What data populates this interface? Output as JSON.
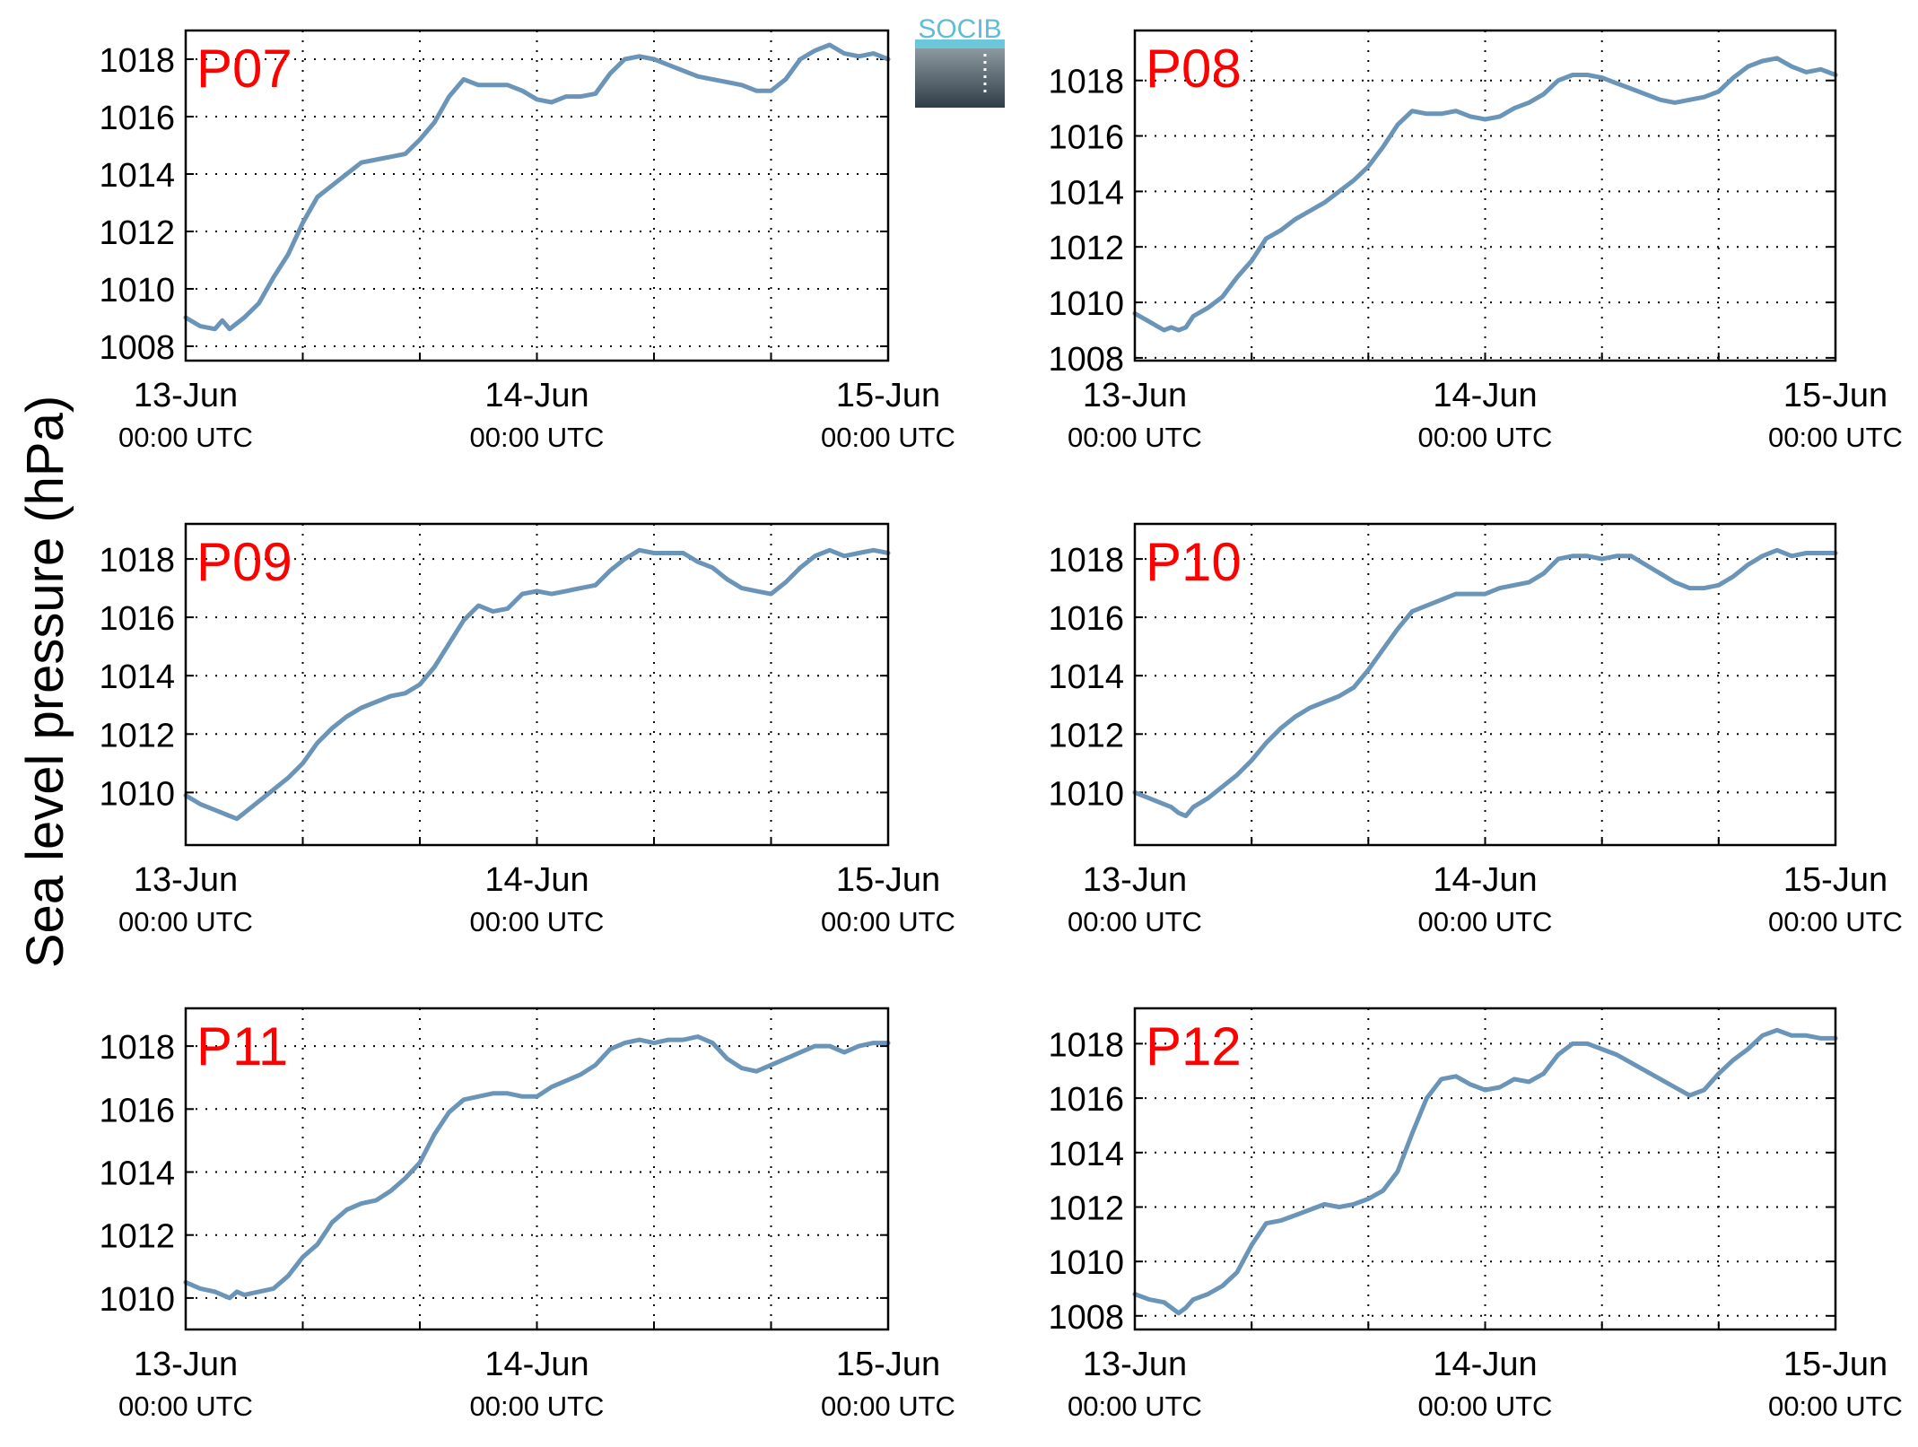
{
  "figure": {
    "ylabel": "Sea level pressure (hPa)",
    "logo_text": "SOCIB",
    "line_color": "#6a95b8",
    "label_color": "#ff0000"
  },
  "chart_data": [
    {
      "type": "line",
      "title": "P07",
      "x_ticks": [
        {
          "date": "13-Jun",
          "time": "00:00 UTC",
          "x": 0
        },
        {
          "date": "14-Jun",
          "time": "00:00 UTC",
          "x": 24
        },
        {
          "date": "15-Jun",
          "time": "00:00 UTC",
          "x": 48
        }
      ],
      "xlim": [
        0,
        48
      ],
      "ylim": [
        1007.5,
        1019
      ],
      "yticks": [
        1008,
        1010,
        1012,
        1014,
        1016,
        1018
      ],
      "grid": true,
      "x_unit": "hours since 13-Jun 00:00 UTC",
      "series": [
        {
          "x": [
            0,
            1,
            2,
            2.5,
            3,
            3.5,
            4,
            5,
            6,
            7,
            8,
            9,
            10,
            11,
            12,
            13,
            14,
            15,
            16,
            17,
            18,
            19,
            20,
            21,
            22,
            23,
            24,
            25,
            26,
            27,
            28,
            29,
            30,
            31,
            32,
            33,
            34,
            35,
            36,
            37,
            38,
            39,
            40,
            41,
            42,
            43,
            44,
            45,
            46,
            47,
            48
          ],
          "y": [
            1009,
            1008.7,
            1008.6,
            1008.9,
            1008.6,
            1008.8,
            1009,
            1009.5,
            1010.4,
            1011.2,
            1012.3,
            1013.2,
            1013.6,
            1014,
            1014.4,
            1014.5,
            1014.6,
            1014.7,
            1015.2,
            1015.8,
            1016.7,
            1017.3,
            1017.1,
            1017.1,
            1017.1,
            1016.9,
            1016.6,
            1016.5,
            1016.7,
            1016.7,
            1016.8,
            1017.5,
            1018,
            1018.1,
            1018,
            1017.8,
            1017.6,
            1017.4,
            1017.3,
            1017.2,
            1017.1,
            1016.9,
            1016.9,
            1017.3,
            1018,
            1018.3,
            1018.5,
            1018.2,
            1018.1,
            1018.2,
            1018
          ]
        }
      ]
    },
    {
      "type": "line",
      "title": "P08",
      "x_ticks": [
        {
          "date": "13-Jun",
          "time": "00:00 UTC",
          "x": 0
        },
        {
          "date": "14-Jun",
          "time": "00:00 UTC",
          "x": 24
        },
        {
          "date": "15-Jun",
          "time": "00:00 UTC",
          "x": 48
        }
      ],
      "xlim": [
        0,
        48
      ],
      "ylim": [
        1007.9,
        1019.8
      ],
      "yticks": [
        1008,
        1010,
        1012,
        1014,
        1016,
        1018
      ],
      "grid": true,
      "x_unit": "hours since 13-Jun 00:00 UTC",
      "series": [
        {
          "x": [
            0,
            1,
            2,
            2.5,
            3,
            3.5,
            4,
            5,
            6,
            7,
            8,
            9,
            10,
            11,
            12,
            13,
            14,
            15,
            16,
            17,
            18,
            19,
            20,
            21,
            22,
            23,
            24,
            25,
            26,
            27,
            28,
            29,
            30,
            31,
            32,
            33,
            34,
            35,
            36,
            37,
            38,
            39,
            40,
            41,
            42,
            43,
            44,
            45,
            46,
            47,
            48
          ],
          "y": [
            1009.6,
            1009.3,
            1009,
            1009.1,
            1009,
            1009.1,
            1009.5,
            1009.8,
            1010.2,
            1010.9,
            1011.5,
            1012.3,
            1012.6,
            1013,
            1013.3,
            1013.6,
            1014,
            1014.4,
            1014.9,
            1015.6,
            1016.4,
            1016.9,
            1016.8,
            1016.8,
            1016.9,
            1016.7,
            1016.6,
            1016.7,
            1017,
            1017.2,
            1017.5,
            1018,
            1018.2,
            1018.2,
            1018.1,
            1017.9,
            1017.7,
            1017.5,
            1017.3,
            1017.2,
            1017.3,
            1017.4,
            1017.6,
            1018.1,
            1018.5,
            1018.7,
            1018.8,
            1018.5,
            1018.3,
            1018.4,
            1018.2
          ]
        }
      ]
    },
    {
      "type": "line",
      "title": "P09",
      "x_ticks": [
        {
          "date": "13-Jun",
          "time": "00:00 UTC",
          "x": 0
        },
        {
          "date": "14-Jun",
          "time": "00:00 UTC",
          "x": 24
        },
        {
          "date": "15-Jun",
          "time": "00:00 UTC",
          "x": 48
        }
      ],
      "xlim": [
        0,
        48
      ],
      "ylim": [
        1008.2,
        1019.2
      ],
      "yticks": [
        1010,
        1012,
        1014,
        1016,
        1018
      ],
      "grid": true,
      "x_unit": "hours since 13-Jun 00:00 UTC",
      "series": [
        {
          "x": [
            0,
            1,
            2,
            2.5,
            3,
            3.5,
            4,
            5,
            6,
            7,
            8,
            9,
            10,
            11,
            12,
            13,
            14,
            15,
            16,
            17,
            18,
            19,
            20,
            21,
            22,
            23,
            24,
            25,
            26,
            27,
            28,
            29,
            30,
            31,
            32,
            33,
            34,
            35,
            36,
            37,
            38,
            39,
            40,
            41,
            42,
            43,
            44,
            45,
            46,
            47,
            48
          ],
          "y": [
            1009.9,
            1009.6,
            1009.4,
            1009.3,
            1009.2,
            1009.1,
            1009.3,
            1009.7,
            1010.1,
            1010.5,
            1011,
            1011.7,
            1012.2,
            1012.6,
            1012.9,
            1013.1,
            1013.3,
            1013.4,
            1013.7,
            1014.3,
            1015.1,
            1015.9,
            1016.4,
            1016.2,
            1016.3,
            1016.8,
            1016.9,
            1016.8,
            1016.9,
            1017,
            1017.1,
            1017.6,
            1018,
            1018.3,
            1018.2,
            1018.2,
            1018.2,
            1017.9,
            1017.7,
            1017.3,
            1017,
            1016.9,
            1016.8,
            1017.2,
            1017.7,
            1018.1,
            1018.3,
            1018.1,
            1018.2,
            1018.3,
            1018.2
          ]
        }
      ]
    },
    {
      "type": "line",
      "title": "P10",
      "x_ticks": [
        {
          "date": "13-Jun",
          "time": "00:00 UTC",
          "x": 0
        },
        {
          "date": "14-Jun",
          "time": "00:00 UTC",
          "x": 24
        },
        {
          "date": "15-Jun",
          "time": "00:00 UTC",
          "x": 48
        }
      ],
      "xlim": [
        0,
        48
      ],
      "ylim": [
        1008.2,
        1019.2
      ],
      "yticks": [
        1010,
        1012,
        1014,
        1016,
        1018
      ],
      "grid": true,
      "x_unit": "hours since 13-Jun 00:00 UTC",
      "series": [
        {
          "x": [
            0,
            1,
            2,
            2.5,
            3,
            3.5,
            4,
            5,
            6,
            7,
            8,
            9,
            10,
            11,
            12,
            13,
            14,
            15,
            16,
            17,
            18,
            19,
            20,
            21,
            22,
            23,
            24,
            25,
            26,
            27,
            28,
            29,
            30,
            31,
            32,
            33,
            34,
            35,
            36,
            37,
            38,
            39,
            40,
            41,
            42,
            43,
            44,
            45,
            46,
            47,
            48
          ],
          "y": [
            1010,
            1009.8,
            1009.6,
            1009.5,
            1009.3,
            1009.2,
            1009.5,
            1009.8,
            1010.2,
            1010.6,
            1011.1,
            1011.7,
            1012.2,
            1012.6,
            1012.9,
            1013.1,
            1013.3,
            1013.6,
            1014.2,
            1014.9,
            1015.6,
            1016.2,
            1016.4,
            1016.6,
            1016.8,
            1016.8,
            1016.8,
            1017,
            1017.1,
            1017.2,
            1017.5,
            1018,
            1018.1,
            1018.1,
            1018,
            1018.1,
            1018.1,
            1017.8,
            1017.5,
            1017.2,
            1017,
            1017,
            1017.1,
            1017.4,
            1017.8,
            1018.1,
            1018.3,
            1018.1,
            1018.2,
            1018.2,
            1018.2
          ]
        }
      ]
    },
    {
      "type": "line",
      "title": "P11",
      "x_ticks": [
        {
          "date": "13-Jun",
          "time": "00:00 UTC",
          "x": 0
        },
        {
          "date": "14-Jun",
          "time": "00:00 UTC",
          "x": 24
        },
        {
          "date": "15-Jun",
          "time": "00:00 UTC",
          "x": 48
        }
      ],
      "xlim": [
        0,
        48
      ],
      "ylim": [
        1009,
        1019.2
      ],
      "yticks": [
        1010,
        1012,
        1014,
        1016,
        1018
      ],
      "grid": true,
      "x_unit": "hours since 13-Jun 00:00 UTC",
      "series": [
        {
          "x": [
            0,
            1,
            2,
            2.5,
            3,
            3.5,
            4,
            5,
            6,
            7,
            8,
            9,
            10,
            11,
            12,
            13,
            14,
            15,
            16,
            17,
            18,
            19,
            20,
            21,
            22,
            23,
            24,
            25,
            26,
            27,
            28,
            29,
            30,
            31,
            32,
            33,
            34,
            35,
            36,
            37,
            38,
            39,
            40,
            41,
            42,
            43,
            44,
            45,
            46,
            47,
            48
          ],
          "y": [
            1010.5,
            1010.3,
            1010.2,
            1010.1,
            1010,
            1010.2,
            1010.1,
            1010.2,
            1010.3,
            1010.7,
            1011.3,
            1011.7,
            1012.4,
            1012.8,
            1013,
            1013.1,
            1013.4,
            1013.8,
            1014.3,
            1015.2,
            1015.9,
            1016.3,
            1016.4,
            1016.5,
            1016.5,
            1016.4,
            1016.4,
            1016.7,
            1016.9,
            1017.1,
            1017.4,
            1017.9,
            1018.1,
            1018.2,
            1018.1,
            1018.2,
            1018.2,
            1018.3,
            1018.1,
            1017.6,
            1017.3,
            1017.2,
            1017.4,
            1017.6,
            1017.8,
            1018,
            1018,
            1017.8,
            1018,
            1018.1,
            1018.1
          ]
        }
      ]
    },
    {
      "type": "line",
      "title": "P12",
      "x_ticks": [
        {
          "date": "13-Jun",
          "time": "00:00 UTC",
          "x": 0
        },
        {
          "date": "14-Jun",
          "time": "00:00 UTC",
          "x": 24
        },
        {
          "date": "15-Jun",
          "time": "00:00 UTC",
          "x": 48
        }
      ],
      "xlim": [
        0,
        48
      ],
      "ylim": [
        1007.5,
        1019.3
      ],
      "yticks": [
        1008,
        1010,
        1012,
        1014,
        1016,
        1018
      ],
      "grid": true,
      "x_unit": "hours since 13-Jun 00:00 UTC",
      "series": [
        {
          "x": [
            0,
            1,
            2,
            2.5,
            3,
            3.5,
            4,
            5,
            6,
            7,
            8,
            9,
            10,
            11,
            12,
            13,
            14,
            15,
            16,
            17,
            18,
            19,
            20,
            21,
            22,
            23,
            24,
            25,
            26,
            27,
            28,
            29,
            30,
            31,
            32,
            33,
            34,
            35,
            36,
            37,
            38,
            39,
            40,
            41,
            42,
            43,
            44,
            45,
            46,
            47,
            48
          ],
          "y": [
            1008.8,
            1008.6,
            1008.5,
            1008.3,
            1008.1,
            1008.3,
            1008.6,
            1008.8,
            1009.1,
            1009.6,
            1010.6,
            1011.4,
            1011.5,
            1011.7,
            1011.9,
            1012.1,
            1012,
            1012.1,
            1012.3,
            1012.6,
            1013.3,
            1014.7,
            1016,
            1016.7,
            1016.8,
            1016.5,
            1016.3,
            1016.4,
            1016.7,
            1016.6,
            1016.9,
            1017.6,
            1018,
            1018,
            1017.8,
            1017.6,
            1017.3,
            1017,
            1016.7,
            1016.4,
            1016.1,
            1016.3,
            1016.9,
            1017.4,
            1017.8,
            1018.3,
            1018.5,
            1018.3,
            1018.3,
            1018.2,
            1018.2
          ]
        }
      ]
    }
  ]
}
